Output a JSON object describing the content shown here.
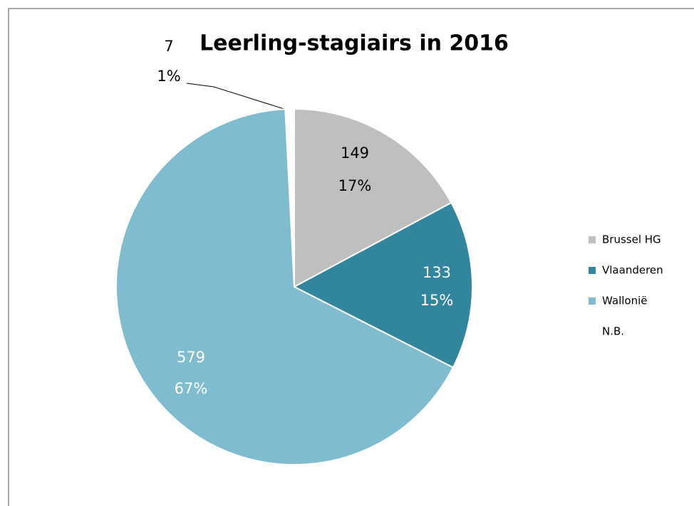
{
  "chart_data": {
    "type": "pie",
    "title": "Leerling-stagiairs in 2016",
    "categories": [
      "Brussel HG",
      "Vlaanderen",
      "Wallonië",
      "N.B."
    ],
    "values": [
      149,
      133,
      579,
      7
    ],
    "percent_labels": [
      "17%",
      "15%",
      "67%",
      "1%"
    ],
    "colors": [
      "#bfbfbf",
      "#31859c",
      "#7fbcd0",
      "#ffffff"
    ],
    "legend": "right"
  }
}
